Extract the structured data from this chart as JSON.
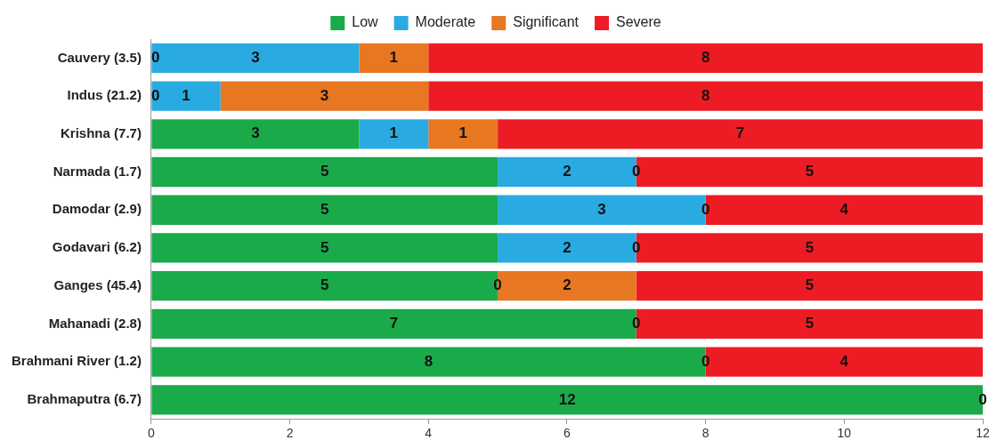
{
  "chart_data": {
    "type": "bar",
    "orientation": "horizontal",
    "stacked": true,
    "categories": [
      "Cauvery (3.5)",
      "Indus (21.2)",
      "Krishna (7.7)",
      "Narmada (1.7)",
      "Damodar (2.9)",
      "Godavari (6.2)",
      "Ganges (45.4)",
      "Mahanadi (2.8)",
      "Brahmani River (1.2)",
      "Brahmaputra (6.7)"
    ],
    "series": [
      {
        "name": "Low",
        "color": "#1aaa4a",
        "values": [
          0,
          0,
          3,
          5,
          5,
          5,
          5,
          7,
          8,
          12
        ],
        "value_labels": [
          null,
          null,
          "3",
          "5",
          "5",
          "5",
          "5",
          "7",
          "8",
          "12"
        ]
      },
      {
        "name": "Moderate",
        "color": "#29abe2",
        "values": [
          3,
          1,
          1,
          2,
          3,
          2,
          0,
          0,
          0,
          0
        ],
        "value_labels": [
          "3",
          "1",
          "1",
          "2",
          "3",
          "2",
          null,
          null,
          null,
          null
        ]
      },
      {
        "name": "Significant",
        "color": "#e87722",
        "values": [
          1,
          3,
          1,
          0,
          0,
          0,
          2,
          0,
          0,
          0
        ],
        "value_labels": [
          "1",
          "3",
          "1",
          null,
          null,
          null,
          "2",
          null,
          null,
          null
        ]
      },
      {
        "name": "Severe",
        "color": "#ed1c24",
        "values": [
          8,
          8,
          7,
          5,
          4,
          5,
          5,
          5,
          4,
          0
        ],
        "value_labels": [
          "8",
          "8",
          "7",
          "5",
          "4",
          "5",
          "5",
          "5",
          "4",
          null
        ]
      }
    ],
    "annotations": [
      {
        "text": "0",
        "x": 0,
        "y": "Cauvery (3.5)"
      },
      {
        "text": "0",
        "x": 0,
        "y": "Indus (21.2)"
      },
      {
        "text": "0",
        "x": 7,
        "y": "Narmada (1.7)"
      },
      {
        "text": "0",
        "x": 8,
        "y": "Damodar (2.9)"
      },
      {
        "text": "0",
        "x": 7,
        "y": "Godavari (6.2)"
      },
      {
        "text": "0",
        "x": 5,
        "y": "Ganges (45.4)"
      },
      {
        "text": "0",
        "x": 7,
        "y": "Mahanadi (2.8)"
      },
      {
        "text": "0",
        "x": 8,
        "y": "Brahmani River (1.2)"
      },
      {
        "text": "0",
        "x": 12,
        "y": "Brahmaputra (6.7)"
      }
    ],
    "xlim": [
      0,
      12
    ],
    "xticks": [
      0,
      2,
      4,
      6,
      8,
      10,
      12
    ],
    "grid": false,
    "legend": "top"
  }
}
